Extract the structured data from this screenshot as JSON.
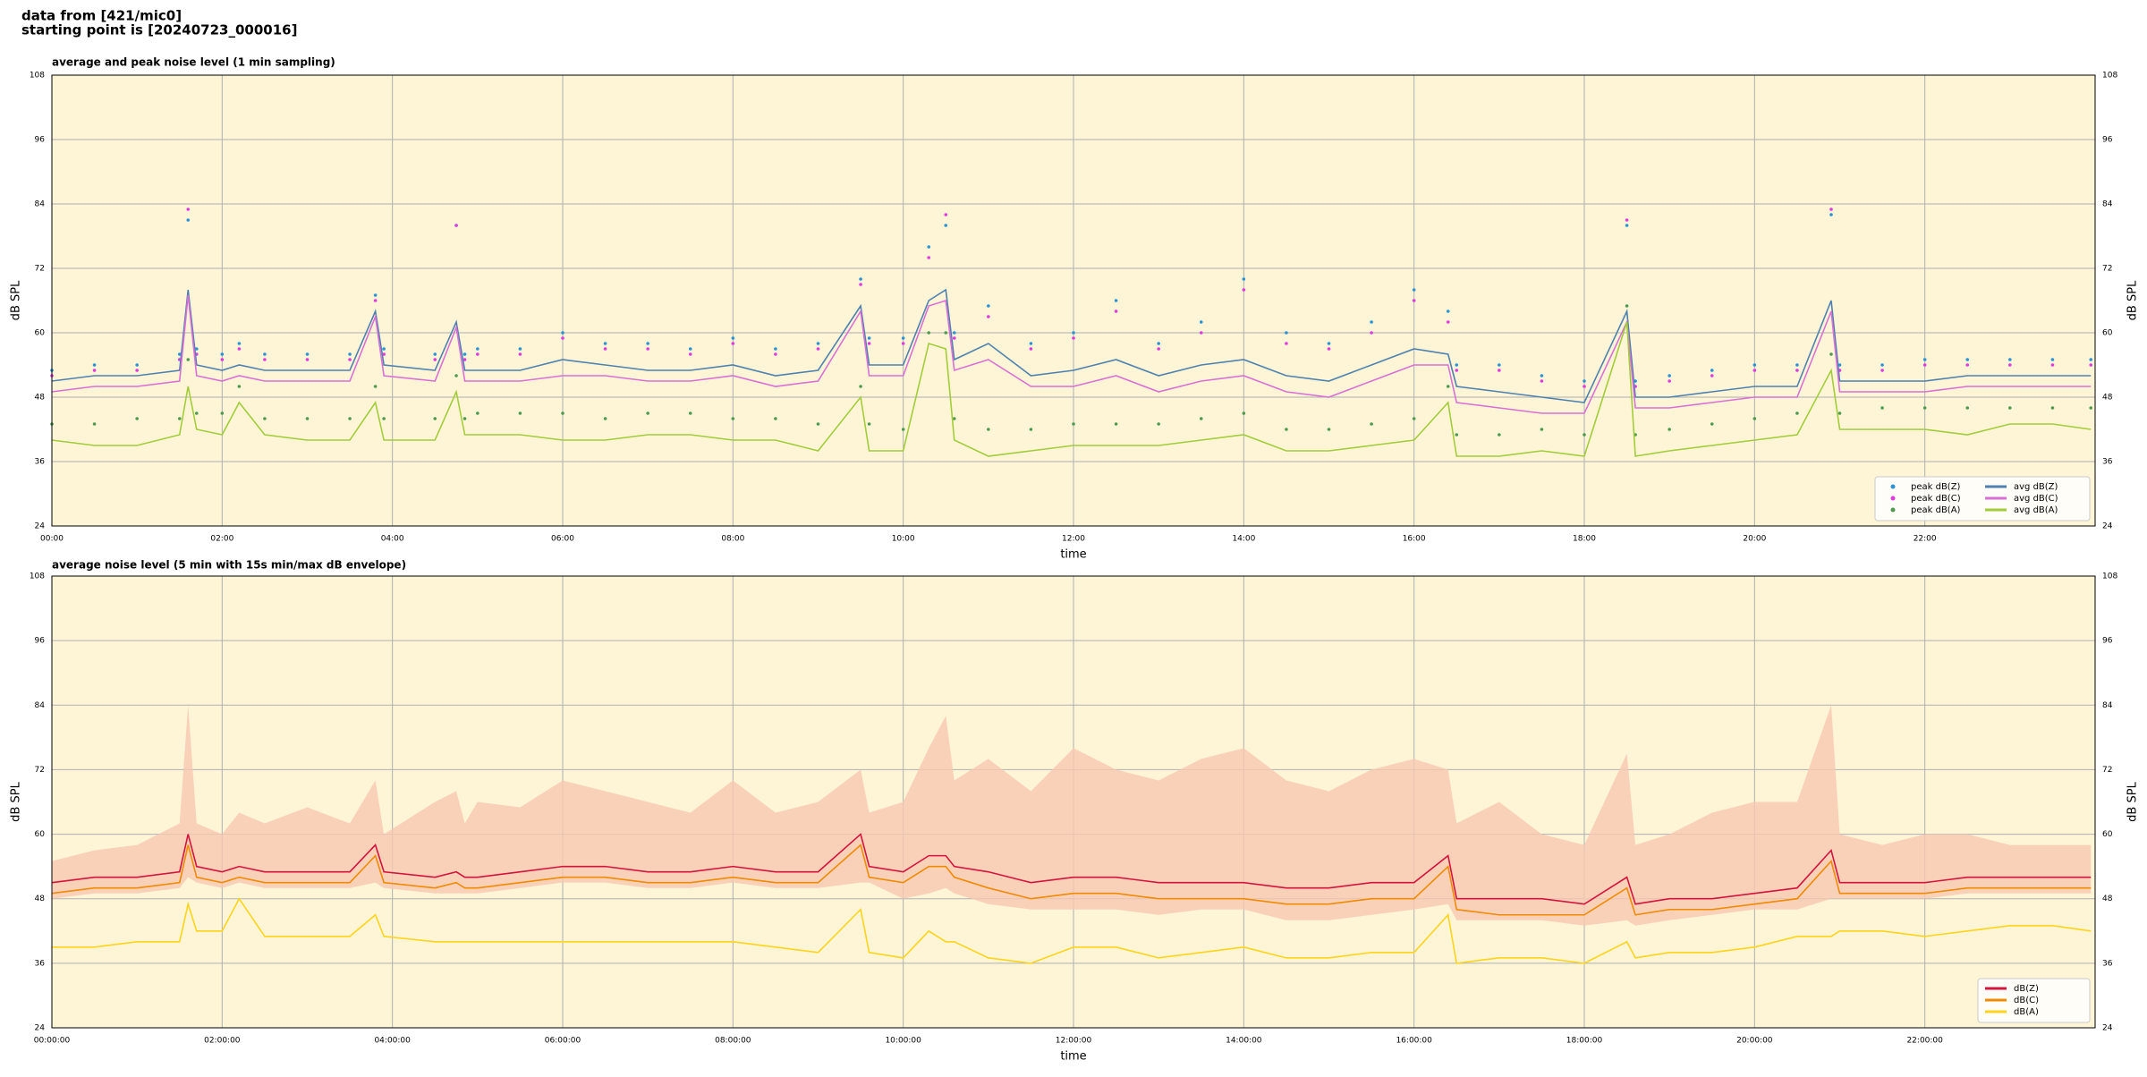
{
  "header": [
    "data from [421/mic0]",
    "starting point is [20240723_000016]"
  ],
  "chart_data": [
    {
      "type": "line",
      "title": "average and peak noise level (1 min sampling)",
      "xlabel": "time",
      "ylabel": "dB SPL",
      "y2label": "dB SPL",
      "background": "#fdf5d6",
      "grid": true,
      "legend": "lower right",
      "legend_columns": 2,
      "xlim": [
        0,
        24
      ],
      "ylim": [
        24,
        108
      ],
      "xticks": [
        {
          "value": 0,
          "label": "00:00"
        },
        {
          "value": 2,
          "label": "02:00"
        },
        {
          "value": 4,
          "label": "04:00"
        },
        {
          "value": 6,
          "label": "06:00"
        },
        {
          "value": 8,
          "label": "08:00"
        },
        {
          "value": 10,
          "label": "10:00"
        },
        {
          "value": 12,
          "label": "12:00"
        },
        {
          "value": 14,
          "label": "14:00"
        },
        {
          "value": 16,
          "label": "16:00"
        },
        {
          "value": 18,
          "label": "18:00"
        },
        {
          "value": 20,
          "label": "20:00"
        },
        {
          "value": 22,
          "label": "22:00"
        }
      ],
      "yticks": [
        24,
        36,
        48,
        60,
        72,
        84,
        96,
        108
      ],
      "x": [
        0,
        0.5,
        1,
        1.5,
        1.6,
        1.7,
        2,
        2.2,
        2.5,
        3,
        3.5,
        3.8,
        3.9,
        4.5,
        4.75,
        4.85,
        5,
        5.5,
        6,
        6.5,
        7,
        7.5,
        8,
        8.5,
        9,
        9.5,
        9.6,
        10,
        10.3,
        10.5,
        10.6,
        11,
        11.5,
        12,
        12.5,
        13,
        13.5,
        14,
        14.5,
        15,
        15.5,
        16,
        16.4,
        16.5,
        17,
        17.5,
        18,
        18.5,
        18.6,
        19,
        19.5,
        20,
        20.5,
        20.9,
        21,
        21.5,
        22,
        22.5,
        23,
        23.5,
        23.95
      ],
      "series": [
        {
          "name": "peak dB(Z)",
          "mode": "markers",
          "color": "#2b93d6",
          "values": [
            53,
            54,
            54,
            56,
            81,
            57,
            56,
            58,
            56,
            56,
            56,
            67,
            57,
            56,
            80,
            56,
            57,
            57,
            60,
            58,
            58,
            57,
            59,
            57,
            58,
            70,
            59,
            59,
            76,
            80,
            60,
            65,
            58,
            60,
            66,
            58,
            62,
            70,
            60,
            58,
            62,
            68,
            64,
            54,
            54,
            52,
            51,
            80,
            51,
            52,
            53,
            54,
            54,
            82,
            54,
            54,
            55,
            55,
            55,
            55,
            55
          ]
        },
        {
          "name": "peak dB(C)",
          "mode": "markers",
          "color": "#e03be0",
          "values": [
            52,
            53,
            53,
            55,
            83,
            56,
            55,
            57,
            55,
            55,
            55,
            66,
            56,
            55,
            80,
            55,
            56,
            56,
            59,
            57,
            57,
            56,
            58,
            56,
            57,
            69,
            58,
            58,
            74,
            82,
            59,
            63,
            57,
            59,
            64,
            57,
            60,
            68,
            58,
            57,
            60,
            66,
            62,
            53,
            53,
            51,
            50,
            81,
            50,
            51,
            52,
            53,
            53,
            83,
            53,
            53,
            54,
            54,
            54,
            54,
            54
          ]
        },
        {
          "name": "peak dB(A)",
          "mode": "markers",
          "color": "#4f9a50",
          "values": [
            43,
            43,
            44,
            44,
            55,
            45,
            45,
            50,
            44,
            44,
            44,
            50,
            44,
            44,
            52,
            44,
            45,
            45,
            45,
            44,
            45,
            45,
            44,
            44,
            43,
            50,
            43,
            42,
            60,
            60,
            44,
            42,
            42,
            43,
            43,
            43,
            44,
            45,
            42,
            42,
            43,
            44,
            50,
            41,
            41,
            42,
            41,
            65,
            41,
            42,
            43,
            44,
            45,
            56,
            45,
            46,
            46,
            46,
            46,
            46,
            46
          ]
        },
        {
          "name": "avg dB(Z)",
          "mode": "lines",
          "color": "#4f81b0",
          "values": [
            51,
            52,
            52,
            53,
            68,
            54,
            53,
            54,
            53,
            53,
            53,
            64,
            54,
            53,
            62,
            53,
            53,
            53,
            55,
            54,
            53,
            53,
            54,
            52,
            53,
            65,
            54,
            54,
            66,
            68,
            55,
            58,
            52,
            53,
            55,
            52,
            54,
            55,
            52,
            51,
            54,
            57,
            56,
            50,
            49,
            48,
            47,
            64,
            48,
            48,
            49,
            50,
            50,
            66,
            51,
            51,
            51,
            52,
            52,
            52,
            52
          ]
        },
        {
          "name": "avg dB(C)",
          "mode": "lines",
          "color": "#d970d6",
          "values": [
            49,
            50,
            50,
            51,
            67,
            52,
            51,
            52,
            51,
            51,
            51,
            63,
            52,
            51,
            61,
            51,
            51,
            51,
            52,
            52,
            51,
            51,
            52,
            50,
            51,
            64,
            52,
            52,
            65,
            66,
            53,
            55,
            50,
            50,
            52,
            49,
            51,
            52,
            49,
            48,
            51,
            54,
            54,
            47,
            46,
            45,
            45,
            62,
            46,
            46,
            47,
            48,
            48,
            64,
            49,
            49,
            49,
            50,
            50,
            50,
            50
          ]
        },
        {
          "name": "avg dB(A)",
          "mode": "lines",
          "color": "#a2cc3a",
          "values": [
            40,
            39,
            39,
            41,
            50,
            42,
            41,
            47,
            41,
            40,
            40,
            47,
            40,
            40,
            49,
            41,
            41,
            41,
            40,
            40,
            41,
            41,
            40,
            40,
            38,
            48,
            38,
            38,
            58,
            57,
            40,
            37,
            38,
            39,
            39,
            39,
            40,
            41,
            38,
            38,
            39,
            40,
            47,
            37,
            37,
            38,
            37,
            62,
            37,
            38,
            39,
            40,
            41,
            53,
            42,
            42,
            42,
            41,
            43,
            43,
            42
          ]
        }
      ]
    },
    {
      "type": "line",
      "title": "average noise level (5 min with 15s min/max dB envelope)",
      "xlabel": "time",
      "ylabel": "dB SPL",
      "y2label": "dB SPL",
      "background": "#fdf5d6",
      "grid": true,
      "legend": "lower right",
      "legend_columns": 1,
      "xlim": [
        0,
        24
      ],
      "ylim": [
        24,
        108
      ],
      "xticks": [
        {
          "value": 0,
          "label": "00:00:00"
        },
        {
          "value": 2,
          "label": "02:00:00"
        },
        {
          "value": 4,
          "label": "04:00:00"
        },
        {
          "value": 6,
          "label": "06:00:00"
        },
        {
          "value": 8,
          "label": "08:00:00"
        },
        {
          "value": 10,
          "label": "10:00:00"
        },
        {
          "value": 12,
          "label": "12:00:00"
        },
        {
          "value": 14,
          "label": "14:00:00"
        },
        {
          "value": 16,
          "label": "16:00:00"
        },
        {
          "value": 18,
          "label": "18:00:00"
        },
        {
          "value": 20,
          "label": "20:00:00"
        },
        {
          "value": 22,
          "label": "22:00:00"
        }
      ],
      "yticks": [
        24,
        36,
        48,
        60,
        72,
        84,
        96,
        108
      ],
      "x": [
        0,
        0.5,
        1,
        1.5,
        1.6,
        1.7,
        2,
        2.2,
        2.5,
        3,
        3.5,
        3.8,
        3.9,
        4.5,
        4.75,
        4.85,
        5,
        5.5,
        6,
        6.5,
        7,
        7.5,
        8,
        8.5,
        9,
        9.5,
        9.6,
        10,
        10.3,
        10.5,
        10.6,
        11,
        11.5,
        12,
        12.5,
        13,
        13.5,
        14,
        14.5,
        15,
        15.5,
        16,
        16.4,
        16.5,
        17,
        17.5,
        18,
        18.5,
        18.6,
        19,
        19.5,
        20,
        20.5,
        20.9,
        21,
        21.5,
        22,
        22.5,
        23,
        23.5,
        23.95
      ],
      "envelope": {
        "color": "#f7c8b2",
        "upper": [
          55,
          57,
          58,
          62,
          84,
          62,
          60,
          64,
          62,
          65,
          62,
          70,
          60,
          66,
          68,
          62,
          66,
          65,
          70,
          68,
          66,
          64,
          70,
          64,
          66,
          72,
          64,
          66,
          76,
          82,
          70,
          74,
          68,
          76,
          72,
          70,
          74,
          76,
          70,
          68,
          72,
          74,
          72,
          62,
          66,
          60,
          58,
          75,
          58,
          60,
          64,
          66,
          66,
          84,
          60,
          58,
          60,
          60,
          58,
          58,
          58
        ],
        "lower": [
          48,
          49,
          49,
          50,
          52,
          51,
          50,
          51,
          50,
          50,
          50,
          51,
          50,
          49,
          49,
          49,
          49,
          50,
          51,
          51,
          50,
          50,
          51,
          50,
          50,
          51,
          51,
          48,
          49,
          50,
          49,
          47,
          46,
          46,
          46,
          45,
          46,
          46,
          44,
          44,
          45,
          46,
          47,
          44,
          44,
          44,
          43,
          44,
          43,
          44,
          45,
          46,
          46,
          48,
          48,
          48,
          48,
          49,
          49,
          49,
          49
        ]
      },
      "series": [
        {
          "name": "dB(Z)",
          "mode": "lines",
          "color": "#d4143c",
          "values": [
            51,
            52,
            52,
            53,
            60,
            54,
            53,
            54,
            53,
            53,
            53,
            58,
            53,
            52,
            53,
            52,
            52,
            53,
            54,
            54,
            53,
            53,
            54,
            53,
            53,
            60,
            54,
            53,
            56,
            56,
            54,
            53,
            51,
            52,
            52,
            51,
            51,
            51,
            50,
            50,
            51,
            51,
            56,
            48,
            48,
            48,
            47,
            52,
            47,
            48,
            48,
            49,
            50,
            57,
            51,
            51,
            51,
            52,
            52,
            52,
            52
          ]
        },
        {
          "name": "dB(C)",
          "mode": "lines",
          "color": "#f08a00",
          "values": [
            49,
            50,
            50,
            51,
            58,
            52,
            51,
            52,
            51,
            51,
            51,
            56,
            51,
            50,
            51,
            50,
            50,
            51,
            52,
            52,
            51,
            51,
            52,
            51,
            51,
            58,
            52,
            51,
            54,
            54,
            52,
            50,
            48,
            49,
            49,
            48,
            48,
            48,
            47,
            47,
            48,
            48,
            54,
            46,
            45,
            45,
            45,
            50,
            45,
            46,
            46,
            47,
            48,
            55,
            49,
            49,
            49,
            50,
            50,
            50,
            50
          ]
        },
        {
          "name": "dB(A)",
          "mode": "lines",
          "color": "#ffd41a",
          "values": [
            39,
            39,
            40,
            40,
            47,
            42,
            42,
            48,
            41,
            41,
            41,
            45,
            41,
            40,
            40,
            40,
            40,
            40,
            40,
            40,
            40,
            40,
            40,
            39,
            38,
            46,
            38,
            37,
            42,
            40,
            40,
            37,
            36,
            39,
            39,
            37,
            38,
            39,
            37,
            37,
            38,
            38,
            45,
            36,
            37,
            37,
            36,
            40,
            37,
            38,
            38,
            39,
            41,
            41,
            42,
            42,
            41,
            42,
            43,
            43,
            42
          ]
        }
      ]
    }
  ]
}
